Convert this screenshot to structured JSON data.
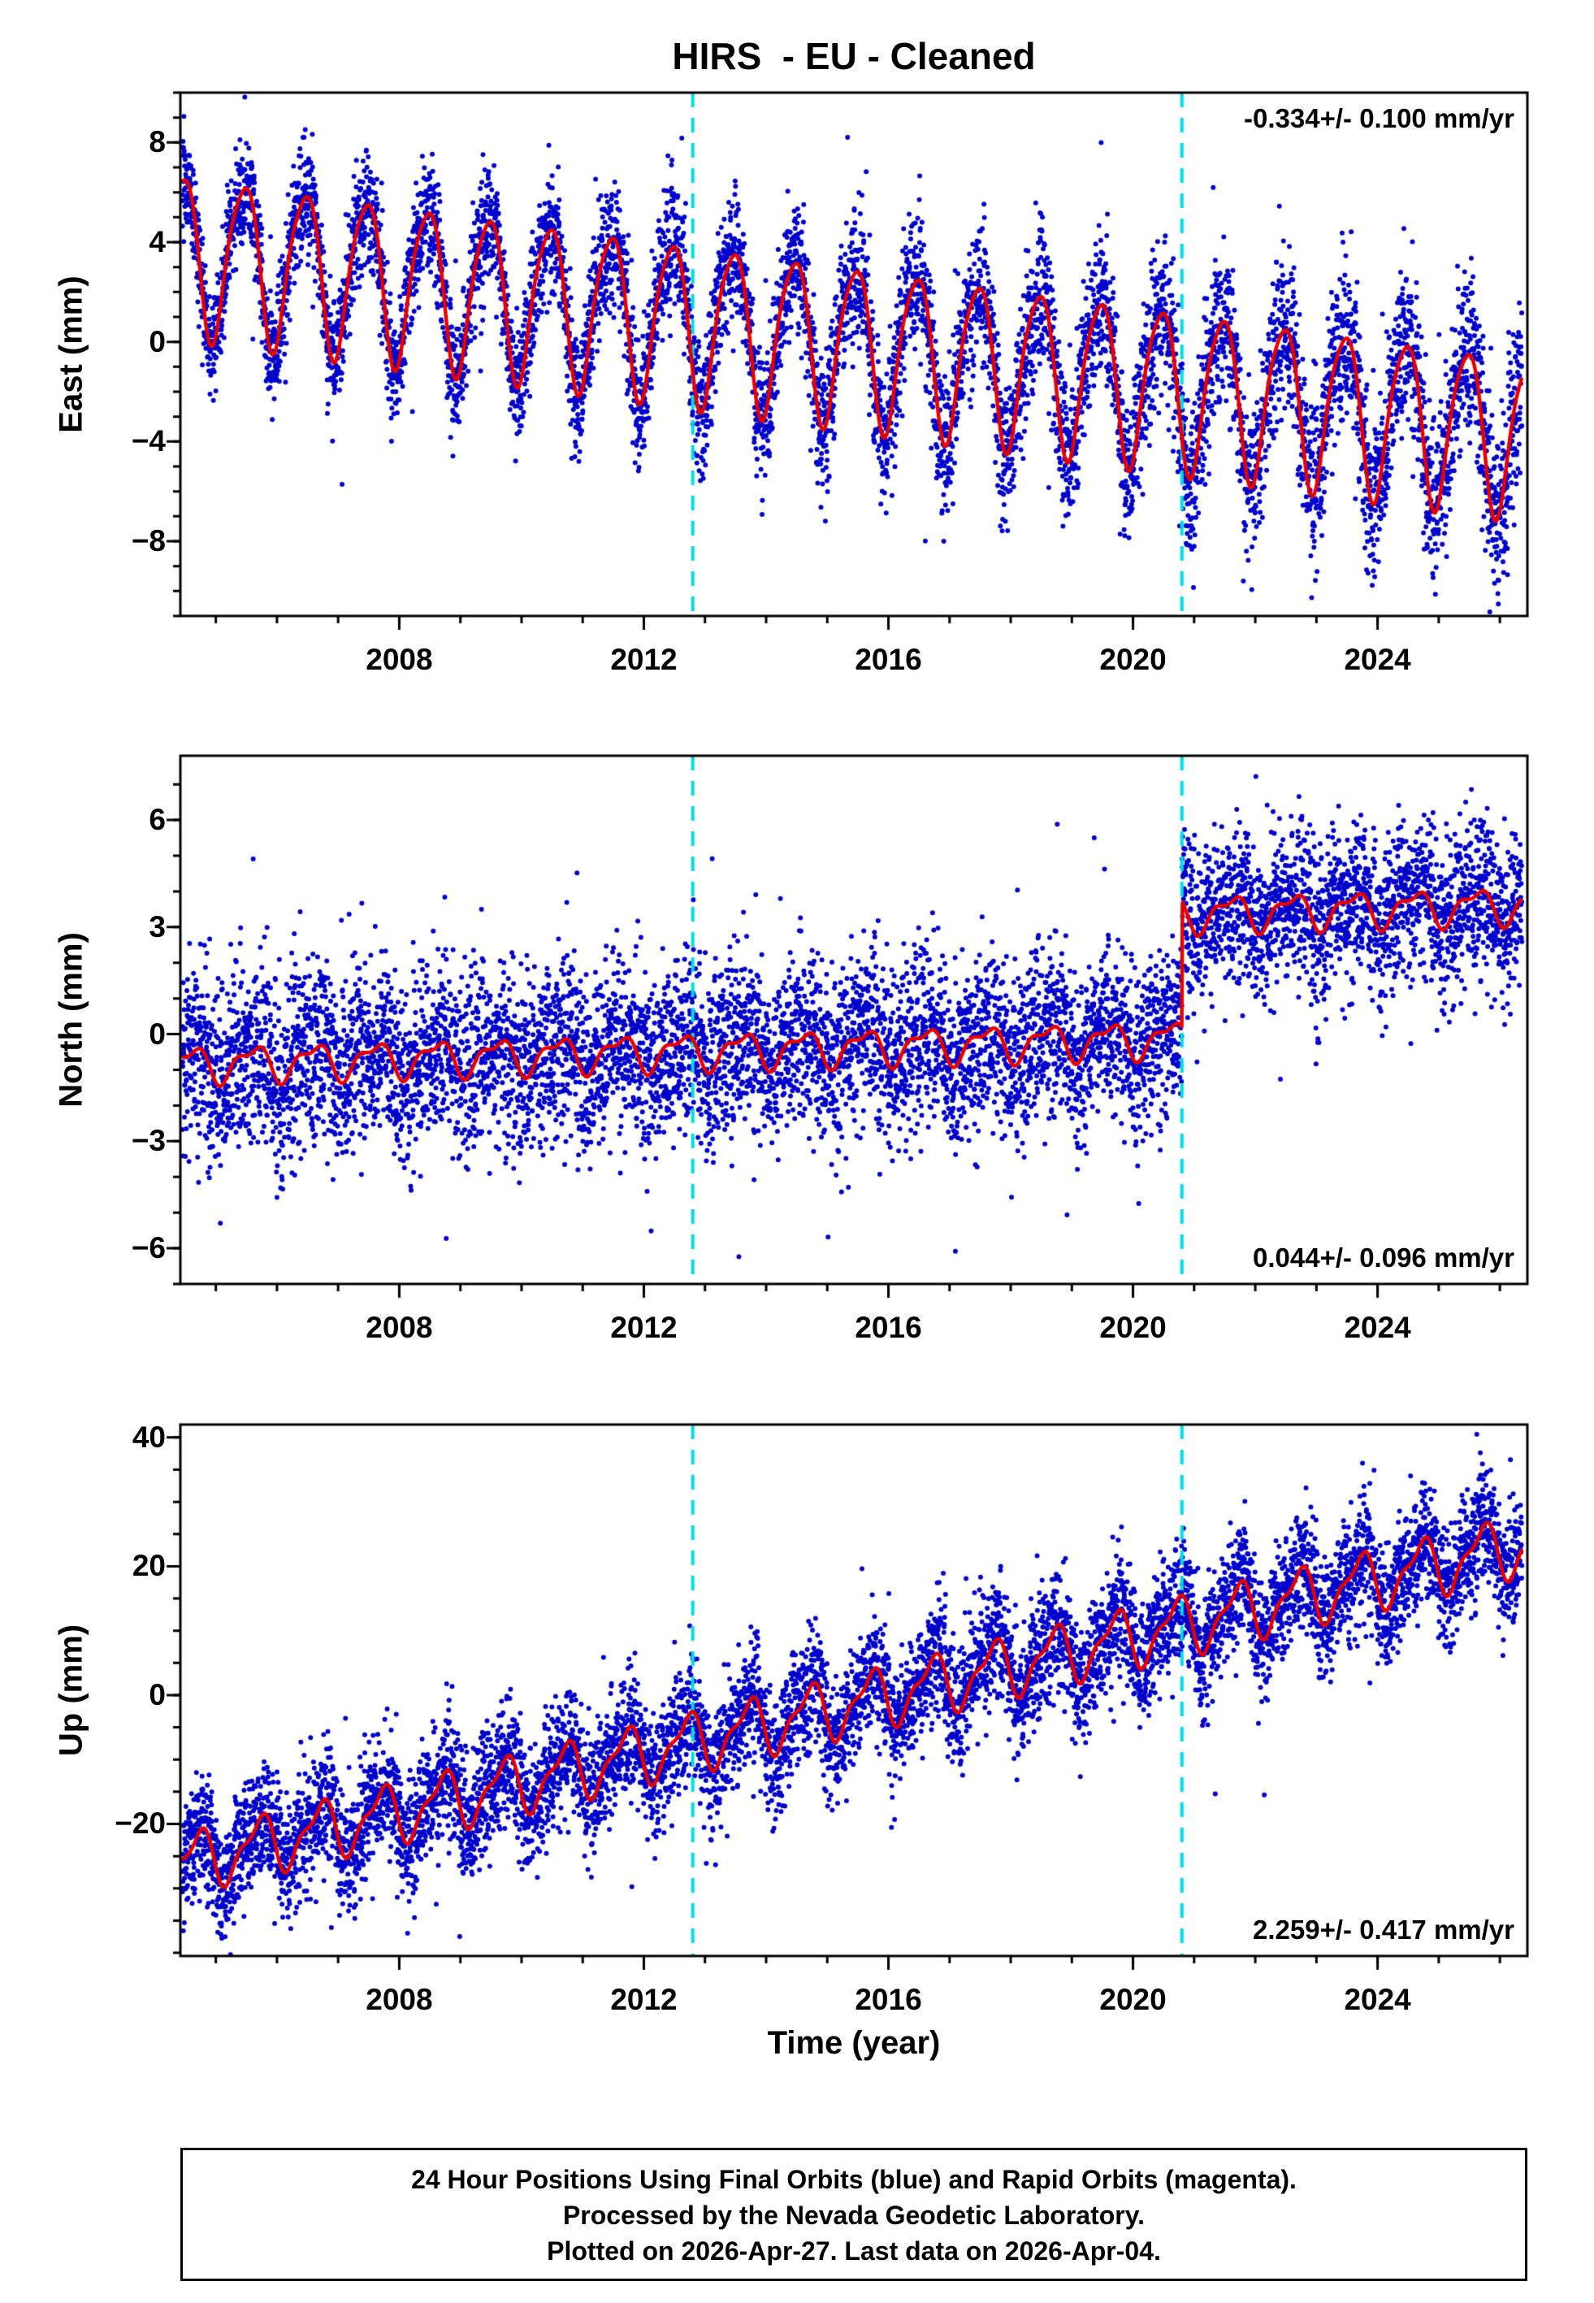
{
  "page": {
    "title": "HIRS  - EU - Cleaned",
    "footer_lines": [
      "24 Hour Positions Using Final Orbits (blue) and Rapid Orbits (magenta).",
      "Processed by the Nevada Geodetic Laboratory.",
      "Plotted on 2026-Apr-27. Last data on 2026-Apr-04."
    ]
  },
  "chart_data": {
    "type": "scatter",
    "title": "HIRS  - EU - Cleaned",
    "xlabel": "Time (year)",
    "xlim": [
      2004.42,
      2026.45
    ],
    "xticks": [
      2008,
      2012,
      2016,
      2020,
      2024
    ],
    "x_minor_step": 1,
    "event_lines_x": [
      2012.8,
      2020.8
    ],
    "colors": {
      "points": "#0000CD",
      "model": "#E80000",
      "event": "#00DDE6",
      "frame": "#000000"
    },
    "panels": [
      {
        "name": "east",
        "ylabel": "East (mm)",
        "ylim": [
          -11,
          10
        ],
        "yticks": [
          -8,
          -4,
          0,
          4,
          8
        ],
        "y_minor_step": 1,
        "rate_mm_per_yr": -0.334,
        "rate_sigma_mm_per_yr": 0.1,
        "annotation": {
          "text": "-0.334+/- 0.100 mm/yr",
          "corner": "top-right"
        },
        "model": {
          "t0": 2004.5,
          "intercept": 3.6,
          "slope": -0.334,
          "steps": [],
          "seasonal": [
            {
              "k": 1,
              "amp": 3.2,
              "phase": 0.45
            },
            {
              "k": 2,
              "amp": 0.5,
              "phase": 0.15
            }
          ]
        },
        "scatter": {
          "n": 7700,
          "seed": 101,
          "sigma_start": 1.05,
          "sigma_end": 1.75,
          "outlier_prob": 0.012,
          "outlier_scale": 3.0
        }
      },
      {
        "name": "north",
        "ylabel": "North (mm)",
        "ylim": [
          -7.0,
          7.8
        ],
        "yticks": [
          -6,
          -3,
          0,
          3,
          6
        ],
        "y_minor_step": 1,
        "rate_mm_per_yr": 0.044,
        "rate_sigma_mm_per_yr": 0.096,
        "annotation": {
          "text": "0.044+/- 0.096 mm/yr",
          "corner": "bottom-right"
        },
        "model": {
          "t0": 2004.5,
          "intercept": -0.85,
          "slope": 0.044,
          "steps": [
            {
              "t": 2020.8,
              "dv": 3.5
            }
          ],
          "seasonal": [
            {
              "k": 1,
              "amp": 0.45,
              "phase": 0.6
            },
            {
              "k": 2,
              "amp": 0.2,
              "phase": 0.3
            }
          ]
        },
        "scatter": {
          "n": 7700,
          "seed": 202,
          "sigma_start": 1.3,
          "sigma_end": 1.05,
          "outlier_prob": 0.02,
          "outlier_scale": 2.4
        }
      },
      {
        "name": "up",
        "ylabel": "Up (mm)",
        "ylim": [
          -40.5,
          42
        ],
        "yticks": [
          -20,
          0,
          20,
          40
        ],
        "y_minor_step": 5,
        "rate_mm_per_yr": 2.259,
        "rate_sigma_mm_per_yr": 0.417,
        "annotation": {
          "text": "2.259+/- 0.417 mm/yr",
          "corner": "bottom-right"
        },
        "model": {
          "t0": 2004.5,
          "intercept": -26,
          "slope": 2.259,
          "steps": [],
          "seasonal": [
            {
              "k": 1,
              "amp": 4.2,
              "phase": 0.7
            },
            {
              "k": 2,
              "amp": 1.6,
              "phase": 0.85
            }
          ]
        },
        "scatter": {
          "n": 7700,
          "seed": 303,
          "sigma_start": 4.6,
          "sigma_end": 4.6,
          "outlier_prob": 0.015,
          "outlier_scale": 2.2
        }
      }
    ]
  }
}
